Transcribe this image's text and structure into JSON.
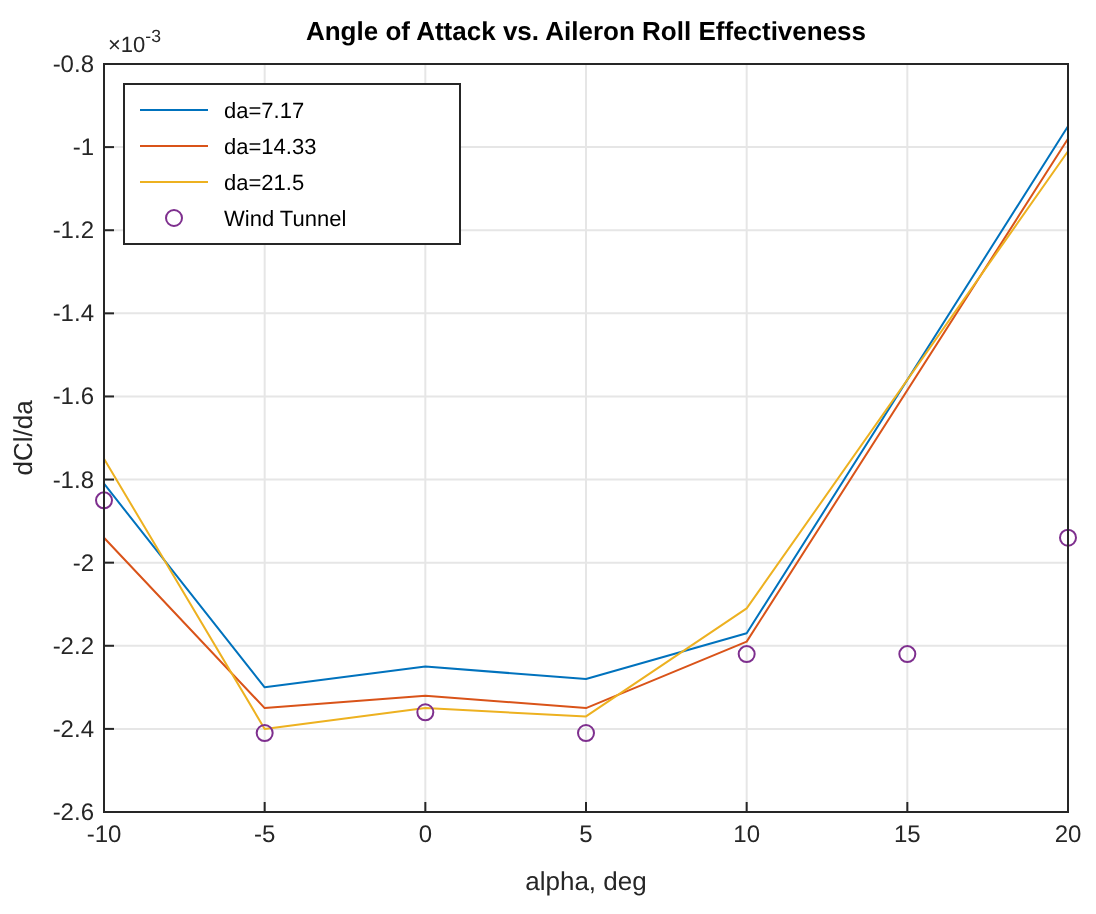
{
  "chart_data": {
    "type": "line",
    "title": "Angle of Attack vs. Aileron Roll Effectiveness",
    "xlabel": "alpha, deg",
    "ylabel": "dCl/da",
    "annotations": [
      "×10$^{-3}$"
    ],
    "x": [
      -10,
      -5,
      0,
      5,
      10,
      20
    ],
    "series": [
      {
        "name": "da=7.17",
        "color": "#0072bd",
        "values": [
          -1.81,
          -2.3,
          -2.25,
          -2.28,
          -2.17,
          -0.95
        ],
        "marker": "none"
      },
      {
        "name": "da=14.33",
        "color": "#d95319",
        "values": [
          -1.94,
          -2.35,
          -2.32,
          -2.35,
          -2.19,
          -0.98
        ],
        "marker": "none"
      },
      {
        "name": "da=21.5",
        "color": "#edb120",
        "values": [
          -1.75,
          -2.4,
          -2.35,
          -2.37,
          -2.11,
          -1.01
        ],
        "marker": "none"
      },
      {
        "name": "Wind Tunnel",
        "type": "scatter",
        "color": "#7e2f8e",
        "x": [
          -10,
          -5,
          0,
          5,
          10,
          15,
          20
        ],
        "values": [
          -1.85,
          -2.41,
          -2.36,
          -2.41,
          -2.22,
          -2.22,
          -1.94
        ],
        "marker": "circle"
      }
    ],
    "xlim": [
      -10,
      20
    ],
    "xticks": [
      -10,
      -5,
      0,
      5,
      10,
      15,
      20
    ],
    "ylim": [
      -2.6,
      -0.8
    ],
    "yticks": [
      -2.6,
      -2.4,
      -2.2,
      -2,
      -1.8,
      -1.6,
      -1.4,
      -1.2,
      -1,
      -0.8
    ],
    "grid": true,
    "legend": "top left"
  }
}
